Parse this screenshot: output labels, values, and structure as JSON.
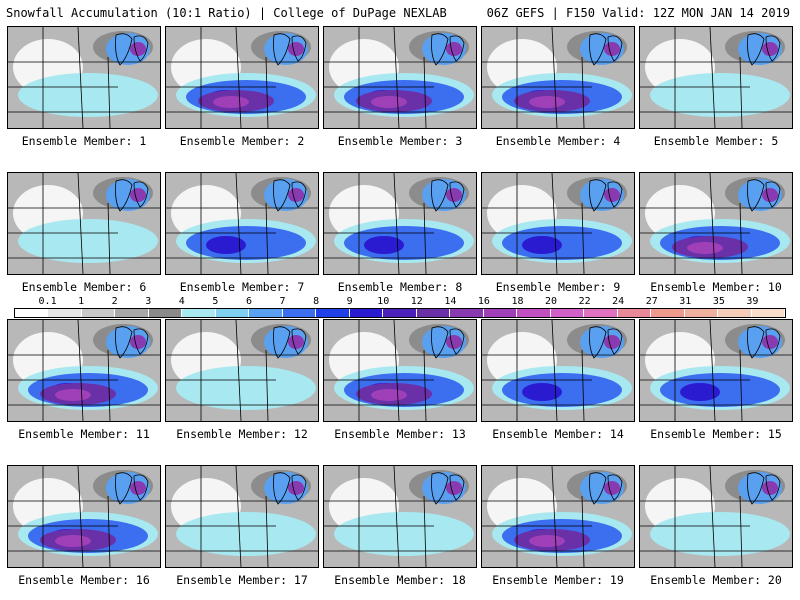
{
  "header": {
    "left": "Snowfall Accumulation (10:1 Ratio) | College of DuPage NEXLAB",
    "right": "06Z GEFS | F150 Valid: 12Z MON JAN 14 2019"
  },
  "colorbar": {
    "labels": [
      "0.1",
      "1",
      "2",
      "3",
      "4",
      "5",
      "6",
      "7",
      "8",
      "9",
      "10",
      "12",
      "14",
      "16",
      "18",
      "20",
      "22",
      "24",
      "27",
      "31",
      "35",
      "39"
    ],
    "colors": [
      "#ffffff",
      "#e6e6e6",
      "#c8c8c8",
      "#a8a8a8",
      "#8a8a8a",
      "#a8e8f0",
      "#7fd0f0",
      "#5aa0f0",
      "#3c6ef0",
      "#2040e8",
      "#2a1ad0",
      "#4a20b8",
      "#6a30a8",
      "#8a3ab0",
      "#a040b8",
      "#c050c0",
      "#d060c8",
      "#e070c0",
      "#e88898",
      "#ec9a8c",
      "#f0b0a0",
      "#f6cdb8",
      "#fadecc"
    ]
  },
  "panels": [
    {
      "caption": "Ensemble Member: 1",
      "intensity": 1
    },
    {
      "caption": "Ensemble Member: 2",
      "intensity": 3
    },
    {
      "caption": "Ensemble Member: 3",
      "intensity": 3
    },
    {
      "caption": "Ensemble Member: 4",
      "intensity": 3
    },
    {
      "caption": "Ensemble Member: 5",
      "intensity": 1
    },
    {
      "caption": "Ensemble Member: 6",
      "intensity": 1
    },
    {
      "caption": "Ensemble Member: 7",
      "intensity": 2
    },
    {
      "caption": "Ensemble Member: 8",
      "intensity": 2
    },
    {
      "caption": "Ensemble Member: 9",
      "intensity": 2
    },
    {
      "caption": "Ensemble Member: 10",
      "intensity": 3
    },
    {
      "caption": "Ensemble Member: 11",
      "intensity": 3
    },
    {
      "caption": "Ensemble Member: 12",
      "intensity": 1
    },
    {
      "caption": "Ensemble Member: 13",
      "intensity": 3
    },
    {
      "caption": "Ensemble Member: 14",
      "intensity": 2
    },
    {
      "caption": "Ensemble Member: 15",
      "intensity": 2
    },
    {
      "caption": "Ensemble Member: 16",
      "intensity": 3
    },
    {
      "caption": "Ensemble Member: 17",
      "intensity": 1
    },
    {
      "caption": "Ensemble Member: 18",
      "intensity": 1
    },
    {
      "caption": "Ensemble Member: 19",
      "intensity": 3
    },
    {
      "caption": "Ensemble Member: 20",
      "intensity": 1
    }
  ]
}
